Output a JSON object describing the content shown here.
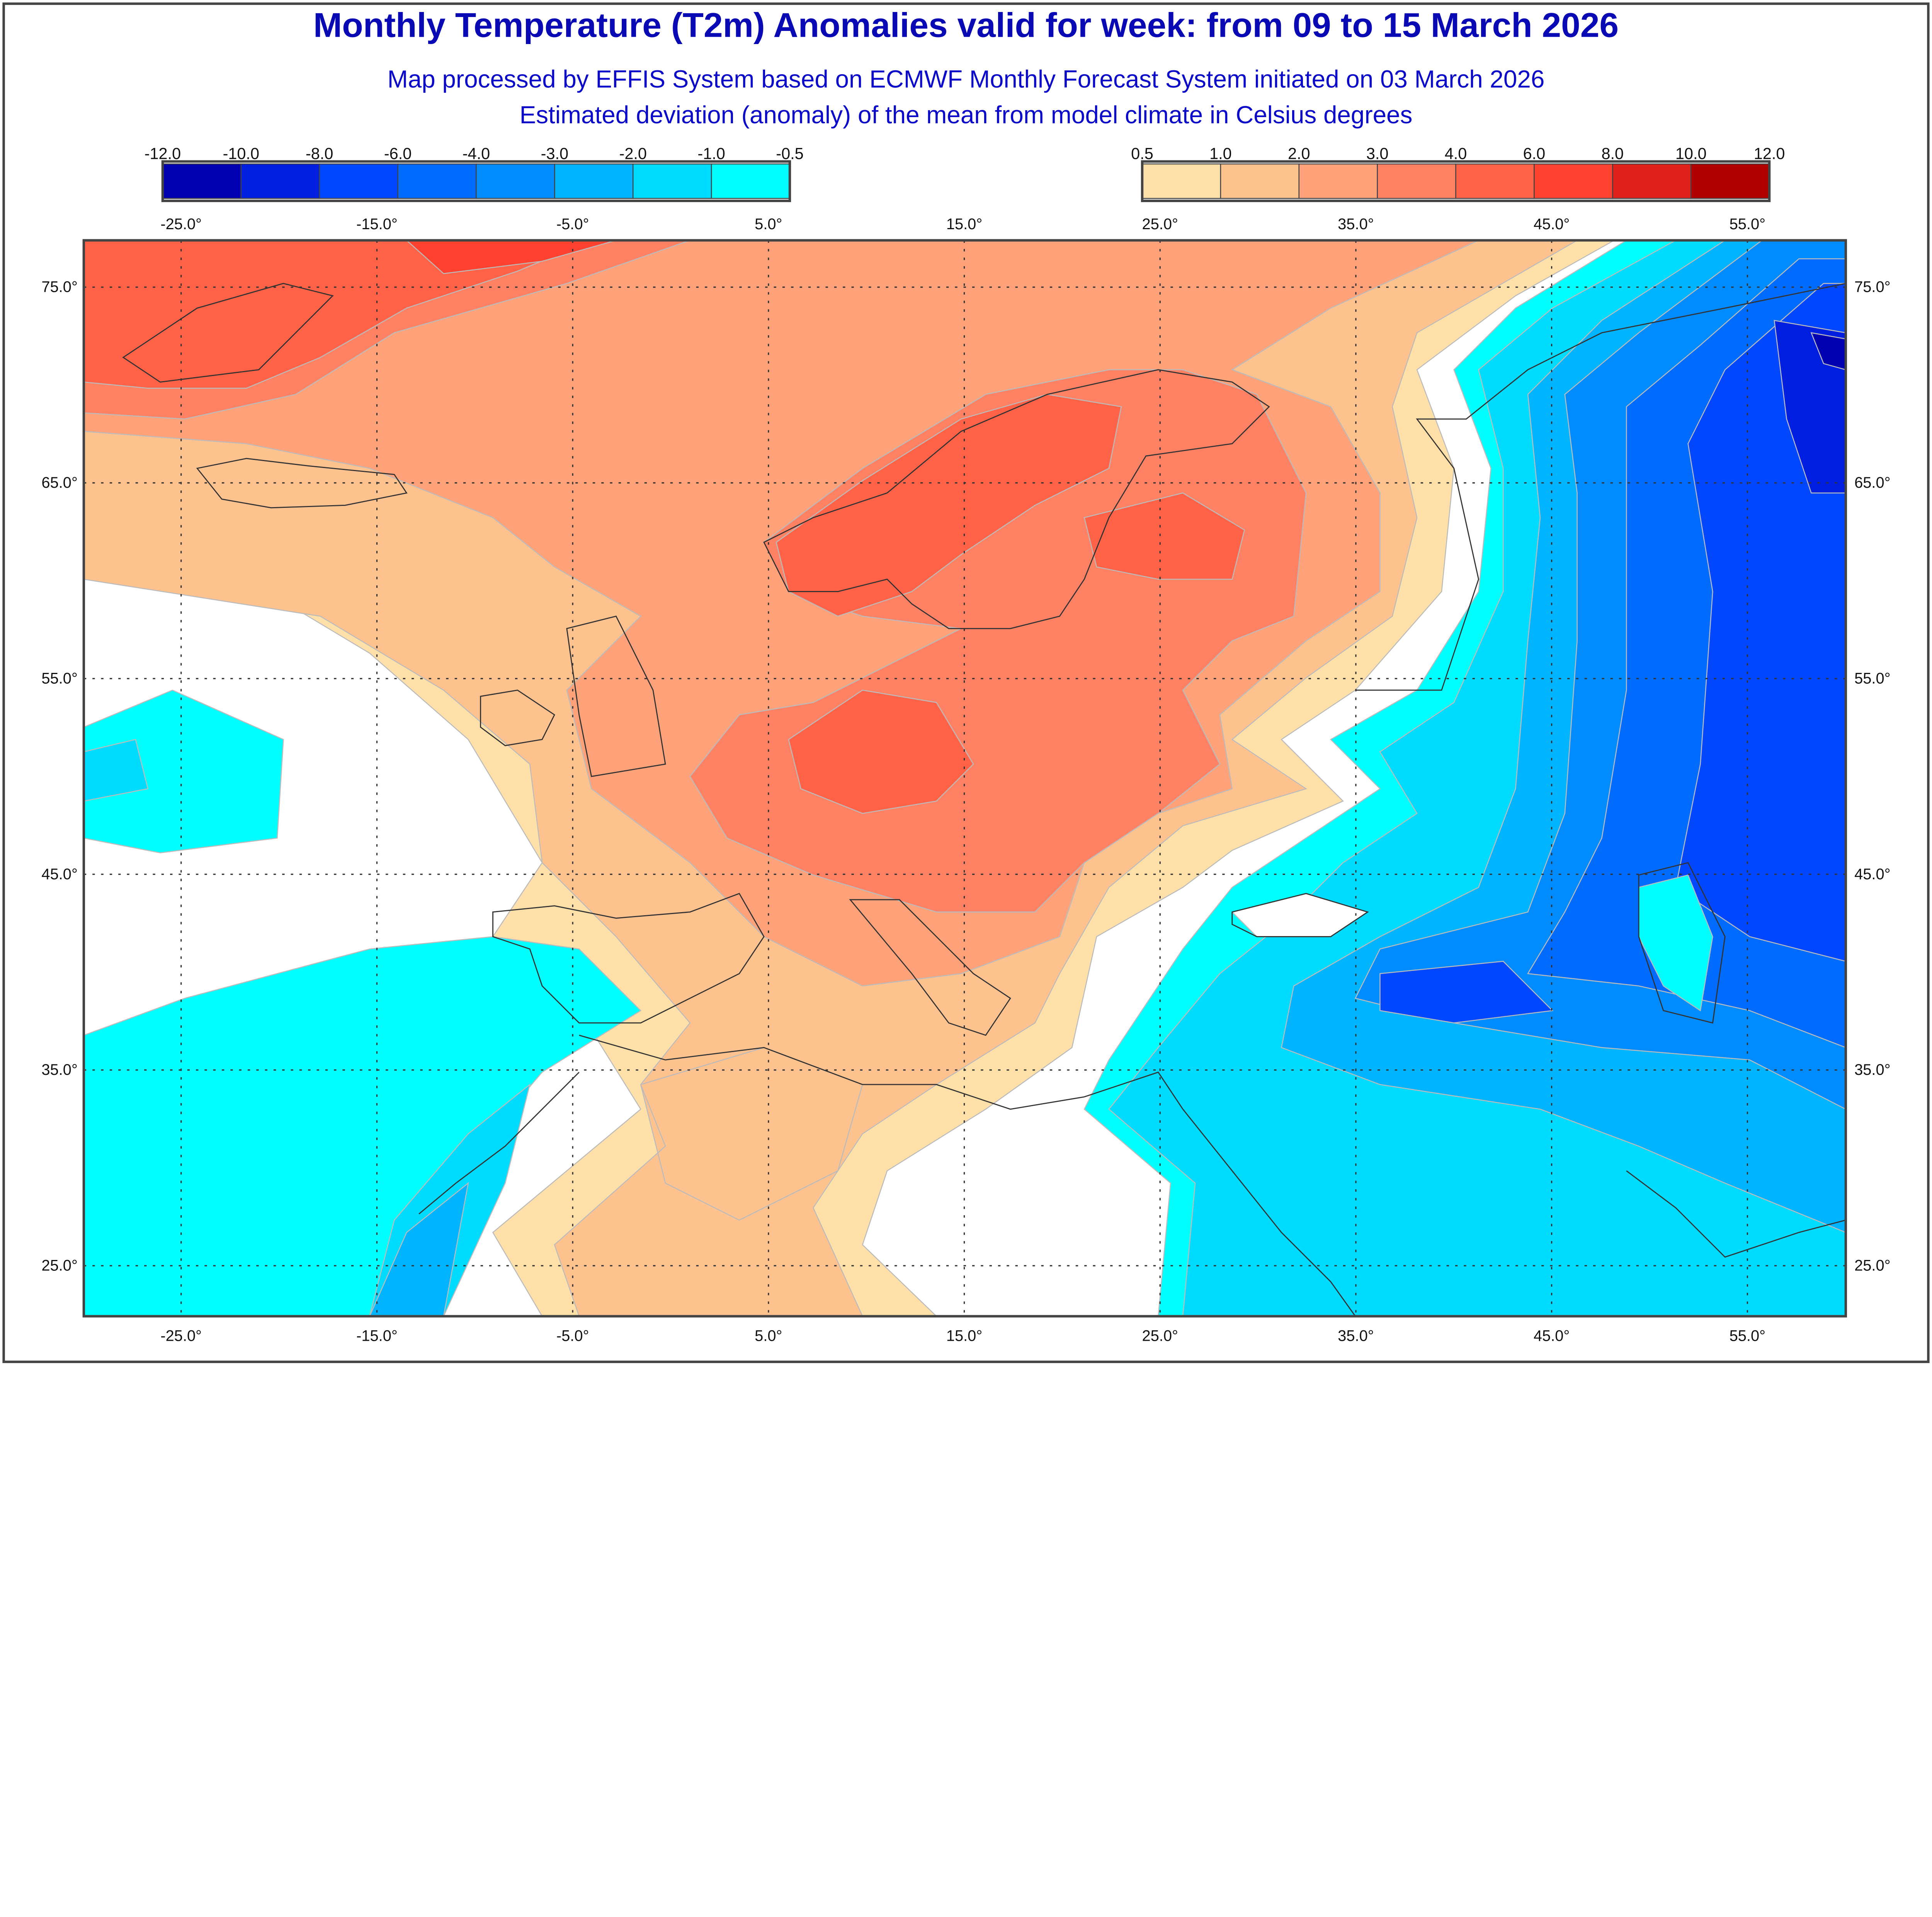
{
  "header": {
    "title": "Monthly Temperature (T2m) Anomalies valid for week: from 09 to 15 March 2026",
    "subtitle_1": "Map processed by EFFIS System based on ECMWF Monthly Forecast System initiated on 03 March 2026",
    "subtitle_2": "Estimated deviation (anomaly) of the mean from model climate in Celsius degrees"
  },
  "legend_cold": {
    "labels": [
      "-12.0",
      "-10.0",
      "-8.0",
      "-6.0",
      "-4.0",
      "-3.0",
      "-2.0",
      "-1.0",
      "-0.5"
    ],
    "colors": [
      "#0000b0",
      "#001ee0",
      "#0047ff",
      "#006cff",
      "#008cff",
      "#00b4ff",
      "#00dcff",
      "#00ffff"
    ]
  },
  "legend_warm": {
    "labels": [
      "0.5",
      "1.0",
      "2.0",
      "3.0",
      "4.0",
      "6.0",
      "8.0",
      "10.0",
      "12.0"
    ],
    "colors": [
      "#ffe0a8",
      "#fec28f",
      "#ffa279",
      "#ff8163",
      "#ff6247",
      "#ff4130",
      "#e0201a",
      "#b00000"
    ]
  },
  "axes": {
    "longitudes": [
      "-25.0°",
      "-15.0°",
      "-5.0°",
      "5.0°",
      "15.0°",
      "25.0°",
      "35.0°",
      "45.0°",
      "55.0°"
    ],
    "latitudes": [
      "75.0°",
      "65.0°",
      "55.0°",
      "45.0°",
      "35.0°",
      "25.0°"
    ]
  }
}
